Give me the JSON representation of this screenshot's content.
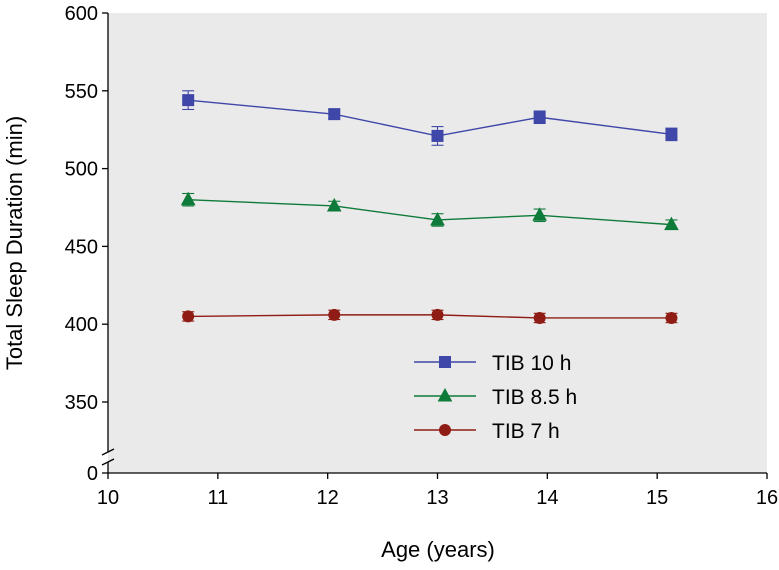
{
  "chart_data": {
    "type": "line",
    "title": "",
    "xlabel": "Age (years)",
    "ylabel": "Total Sleep Duration (min)",
    "xlim": [
      10,
      16
    ],
    "x_ticks": [
      "10",
      "11",
      "12",
      "13",
      "14",
      "15",
      "16"
    ],
    "y_ticks": [
      "0",
      "350",
      "400",
      "450",
      "500",
      "550",
      "600"
    ],
    "y_axis_break": {
      "below": 350,
      "above": 0
    },
    "grid": false,
    "legend_position": "lower-right",
    "colors": {
      "plot_background": "#eaeaea",
      "axis": "#000000"
    },
    "series": [
      {
        "name": "TIB 10 h",
        "color": "#3f47a8",
        "marker": "square",
        "x": [
          10.73,
          12.06,
          13.0,
          13.93,
          15.13
        ],
        "y": [
          544,
          535,
          521,
          533,
          522
        ],
        "err": [
          6,
          3,
          6,
          4,
          4
        ]
      },
      {
        "name": "TIB 8.5 h",
        "color": "#0e7b3a",
        "marker": "triangle",
        "x": [
          10.73,
          12.06,
          13.0,
          13.93,
          15.13
        ],
        "y": [
          480,
          476,
          467,
          470,
          464
        ],
        "err": [
          4,
          3,
          4,
          4,
          3
        ]
      },
      {
        "name": "TIB 7 h",
        "color": "#8f1d15",
        "marker": "circle",
        "x": [
          10.73,
          12.06,
          13.0,
          13.93,
          15.13
        ],
        "y": [
          405,
          406,
          406,
          404,
          404
        ],
        "err": [
          3,
          3,
          3,
          3,
          3
        ]
      }
    ]
  }
}
